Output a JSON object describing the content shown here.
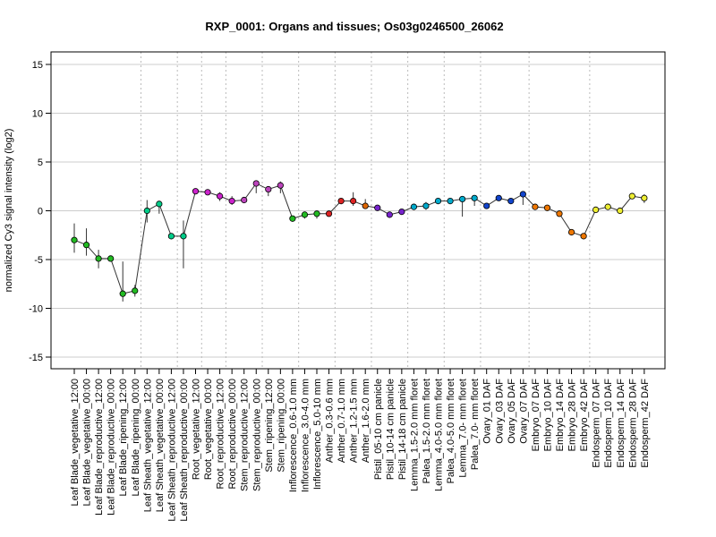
{
  "chart_data": {
    "type": "line",
    "title": "RXP_0001: Organs and tissues; Os03g0246500_26062",
    "ylabel": "normalized Cy3 signal intensity (log2)",
    "xlabel": "",
    "ylim": [
      -15,
      15
    ],
    "yticks": [
      -15,
      -10,
      -5,
      0,
      5,
      10,
      15
    ],
    "grid": true,
    "group_boundaries_after_index": [
      5,
      8,
      10,
      12,
      15,
      18,
      21,
      24,
      27,
      30,
      33,
      37,
      42
    ],
    "categories": [
      "Leaf Blade_vegetative_12:00",
      "Leaf Blade_vegetative_00:00",
      "Leaf Blade_reproductive_12:00",
      "Leaf Blade_reproductive_00:00",
      "Leaf Blade_ripening_12:00",
      "Leaf Blade_ripening_00:00",
      "Leaf Sheath_vegetative_12:00",
      "Leaf Sheath_vegetative_00:00",
      "Leaf Sheath_reproductive_12:00",
      "Leaf Sheath_reproductive_00:00",
      "Root_vegetative_12:00",
      "Root_vegetative_00:00",
      "Root_reproductive_12:00",
      "Root_reproductive_00:00",
      "Stem_reproductive_12:00",
      "Stem_reproductive_00:00",
      "Stem_ripening_12:00",
      "Stem_ripening_00:00",
      "Inflorescence_0.6-1.0 mm",
      "Inflorescence_3.0-4.0 mm",
      "Inflorescence_5.0-10 mm",
      "Anther_0.3-0.6 mm",
      "Anther_0.7-1.0 mm",
      "Anther_1.2-1.5 mm",
      "Anther_1.6-2.0 mm",
      "Pistil_05-10 cm panicle",
      "Pistil_10-14 cm panicle",
      "Pistil_14-18 cm panicle",
      "Lemma_1.5-2.0 mm floret",
      "Palea_1.5-2.0 mm floret",
      "Lemma_4.0-5.0 mm floret",
      "Palea_4.0-5.0 mm floret",
      "Lemma_7.0- mm floret",
      "Palea_7.0- mm floret",
      "Ovary_01 DAF",
      "Ovary_03 DAF",
      "Ovary_05 DAF",
      "Ovary_07 DAF",
      "Embryo_07 DAF",
      "Embryo_10 DAF",
      "Embryo_14 DAF",
      "Embryo_28 DAF",
      "Embryo_42 DAF",
      "Endosperm_07 DAF",
      "Endosperm_10 DAF",
      "Endosperm_14 DAF",
      "Endosperm_28 DAF",
      "Endosperm_42 DAF"
    ],
    "series": [
      {
        "values": [
          -3.0,
          -3.5,
          -4.9,
          -4.9,
          -8.5,
          -8.2,
          0.0,
          0.7,
          -2.6,
          -2.6,
          2.0,
          1.9,
          1.5,
          1.0,
          1.1,
          2.8,
          2.2,
          2.6,
          -0.8,
          -0.4,
          -0.3,
          -0.3,
          1.0,
          1.0,
          0.5,
          0.3,
          -0.4,
          -0.1,
          0.4,
          0.5,
          1.0,
          1.0,
          1.2,
          1.3,
          0.5,
          1.3,
          1.0,
          1.7,
          0.4,
          0.3,
          -0.3,
          -2.2,
          -2.6,
          0.1,
          0.4,
          0.0,
          1.5,
          1.3
        ],
        "error_low": [
          -4.3,
          -4.6,
          -5.9,
          -5.2,
          -9.3,
          -8.8,
          -1.2,
          -0.3,
          -2.8,
          -5.9,
          1.8,
          1.7,
          1.0,
          0.6,
          0.8,
          1.8,
          1.5,
          1.8,
          -0.9,
          -0.8,
          -0.8,
          -0.4,
          0.7,
          0.5,
          0.2,
          0.0,
          -0.5,
          -0.2,
          0.2,
          0.1,
          0.8,
          0.8,
          -0.6,
          0.5,
          0.4,
          1.1,
          0.8,
          0.6,
          0.3,
          0.1,
          -0.5,
          -2.4,
          -2.8,
          -0.2,
          0.1,
          -0.1,
          1.2,
          0.8
        ],
        "error_high": [
          -1.3,
          -1.8,
          -4.0,
          -4.6,
          -5.2,
          -7.6,
          1.1,
          1.0,
          -2.3,
          -1.0,
          2.2,
          2.1,
          1.9,
          1.5,
          1.4,
          2.9,
          2.4,
          3.0,
          -0.6,
          -0.1,
          0.0,
          -0.1,
          1.2,
          1.9,
          1.2,
          0.5,
          -0.3,
          0.1,
          0.6,
          0.9,
          1.2,
          1.2,
          1.5,
          1.6,
          0.7,
          1.5,
          1.2,
          1.9,
          0.5,
          0.5,
          -0.1,
          -2.0,
          -2.4,
          0.4,
          0.6,
          0.2,
          1.7,
          1.7
        ],
        "colors": [
          "#22bb22",
          "#22bb22",
          "#22bb22",
          "#22bb22",
          "#22bb22",
          "#22bb22",
          "#00cc88",
          "#00cc88",
          "#00cc88",
          "#00cc88",
          "#cc22cc",
          "#cc22cc",
          "#cc22cc",
          "#cc22cc",
          "#bb44bb",
          "#bb44bb",
          "#bb44bb",
          "#bb44bb",
          "#22bb22",
          "#22bb22",
          "#22bb22",
          "#dd2222",
          "#dd2222",
          "#dd2222",
          "#dd6600",
          "#7722cc",
          "#7722cc",
          "#7722cc",
          "#00aacc",
          "#00aacc",
          "#00aacc",
          "#00aacc",
          "#00aacc",
          "#00aacc",
          "#1144cc",
          "#1144cc",
          "#1144cc",
          "#1144cc",
          "#ee7700",
          "#ee7700",
          "#ee7700",
          "#ee7700",
          "#ee7700",
          "#eeee33",
          "#eeee33",
          "#eeee33",
          "#eeee33",
          "#eeee33"
        ]
      }
    ]
  }
}
